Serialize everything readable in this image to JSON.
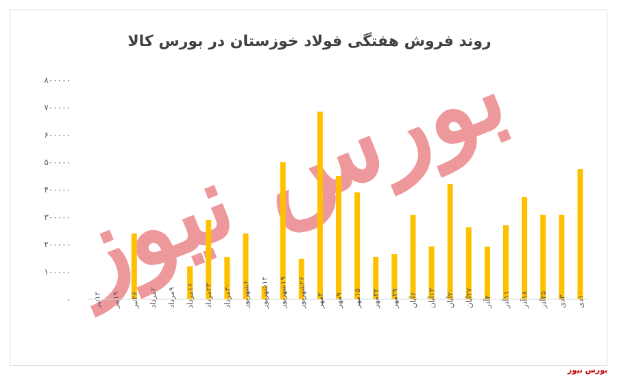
{
  "chart_data": {
    "type": "bar",
    "title": "روند فروش هفتگی فولاد خوزستان در بورس کالا",
    "xlabel": "",
    "ylabel": "",
    "ylim": [
      0,
      800000
    ],
    "yticks": [
      "۰",
      "۱۰۰۰۰۰",
      "۲۰۰۰۰۰",
      "۳۰۰۰۰۰",
      "۴۰۰۰۰۰",
      "۵۰۰۰۰۰",
      "۶۰۰۰۰۰",
      "۷۰۰۰۰۰",
      "۸۰۰۰۰۰"
    ],
    "categories": [
      "۱۲تیر",
      "۱۹تیر",
      "۲۶تیر",
      "۲مرداد",
      "۹مرداد",
      "۱۶مرداد",
      "۲۳مرداد",
      "۳۰مرداد",
      "۶شهریور",
      "۱۲شهریور",
      "۱۹شهریور",
      "۲۶شهریور",
      "۲مهر",
      "۹مهر",
      "۱۵مهر",
      "۲۲مهر",
      "۲۹مهر",
      "۶آبان",
      "۱۳آبان",
      "۲۰آبان",
      "۲۷آبان",
      "۴آذر",
      "۱۱آذر",
      "۱۸آذر",
      "۲۵آذر",
      "۳دی",
      "۱۰دی"
    ],
    "values": [
      0,
      0,
      240000,
      0,
      0,
      120000,
      290000,
      155000,
      240000,
      48000,
      500000,
      148000,
      685000,
      450000,
      390000,
      155000,
      165000,
      308000,
      193000,
      420000,
      263000,
      192000,
      270000,
      373000,
      308000,
      308000,
      475000
    ],
    "grid": false,
    "legend": "none",
    "colors": {
      "bar": "#ffc000",
      "axis": "#d9d9d9",
      "text": "#595959"
    }
  },
  "watermark": "بورس نیوز",
  "footer_brand": "بورس نیوز"
}
